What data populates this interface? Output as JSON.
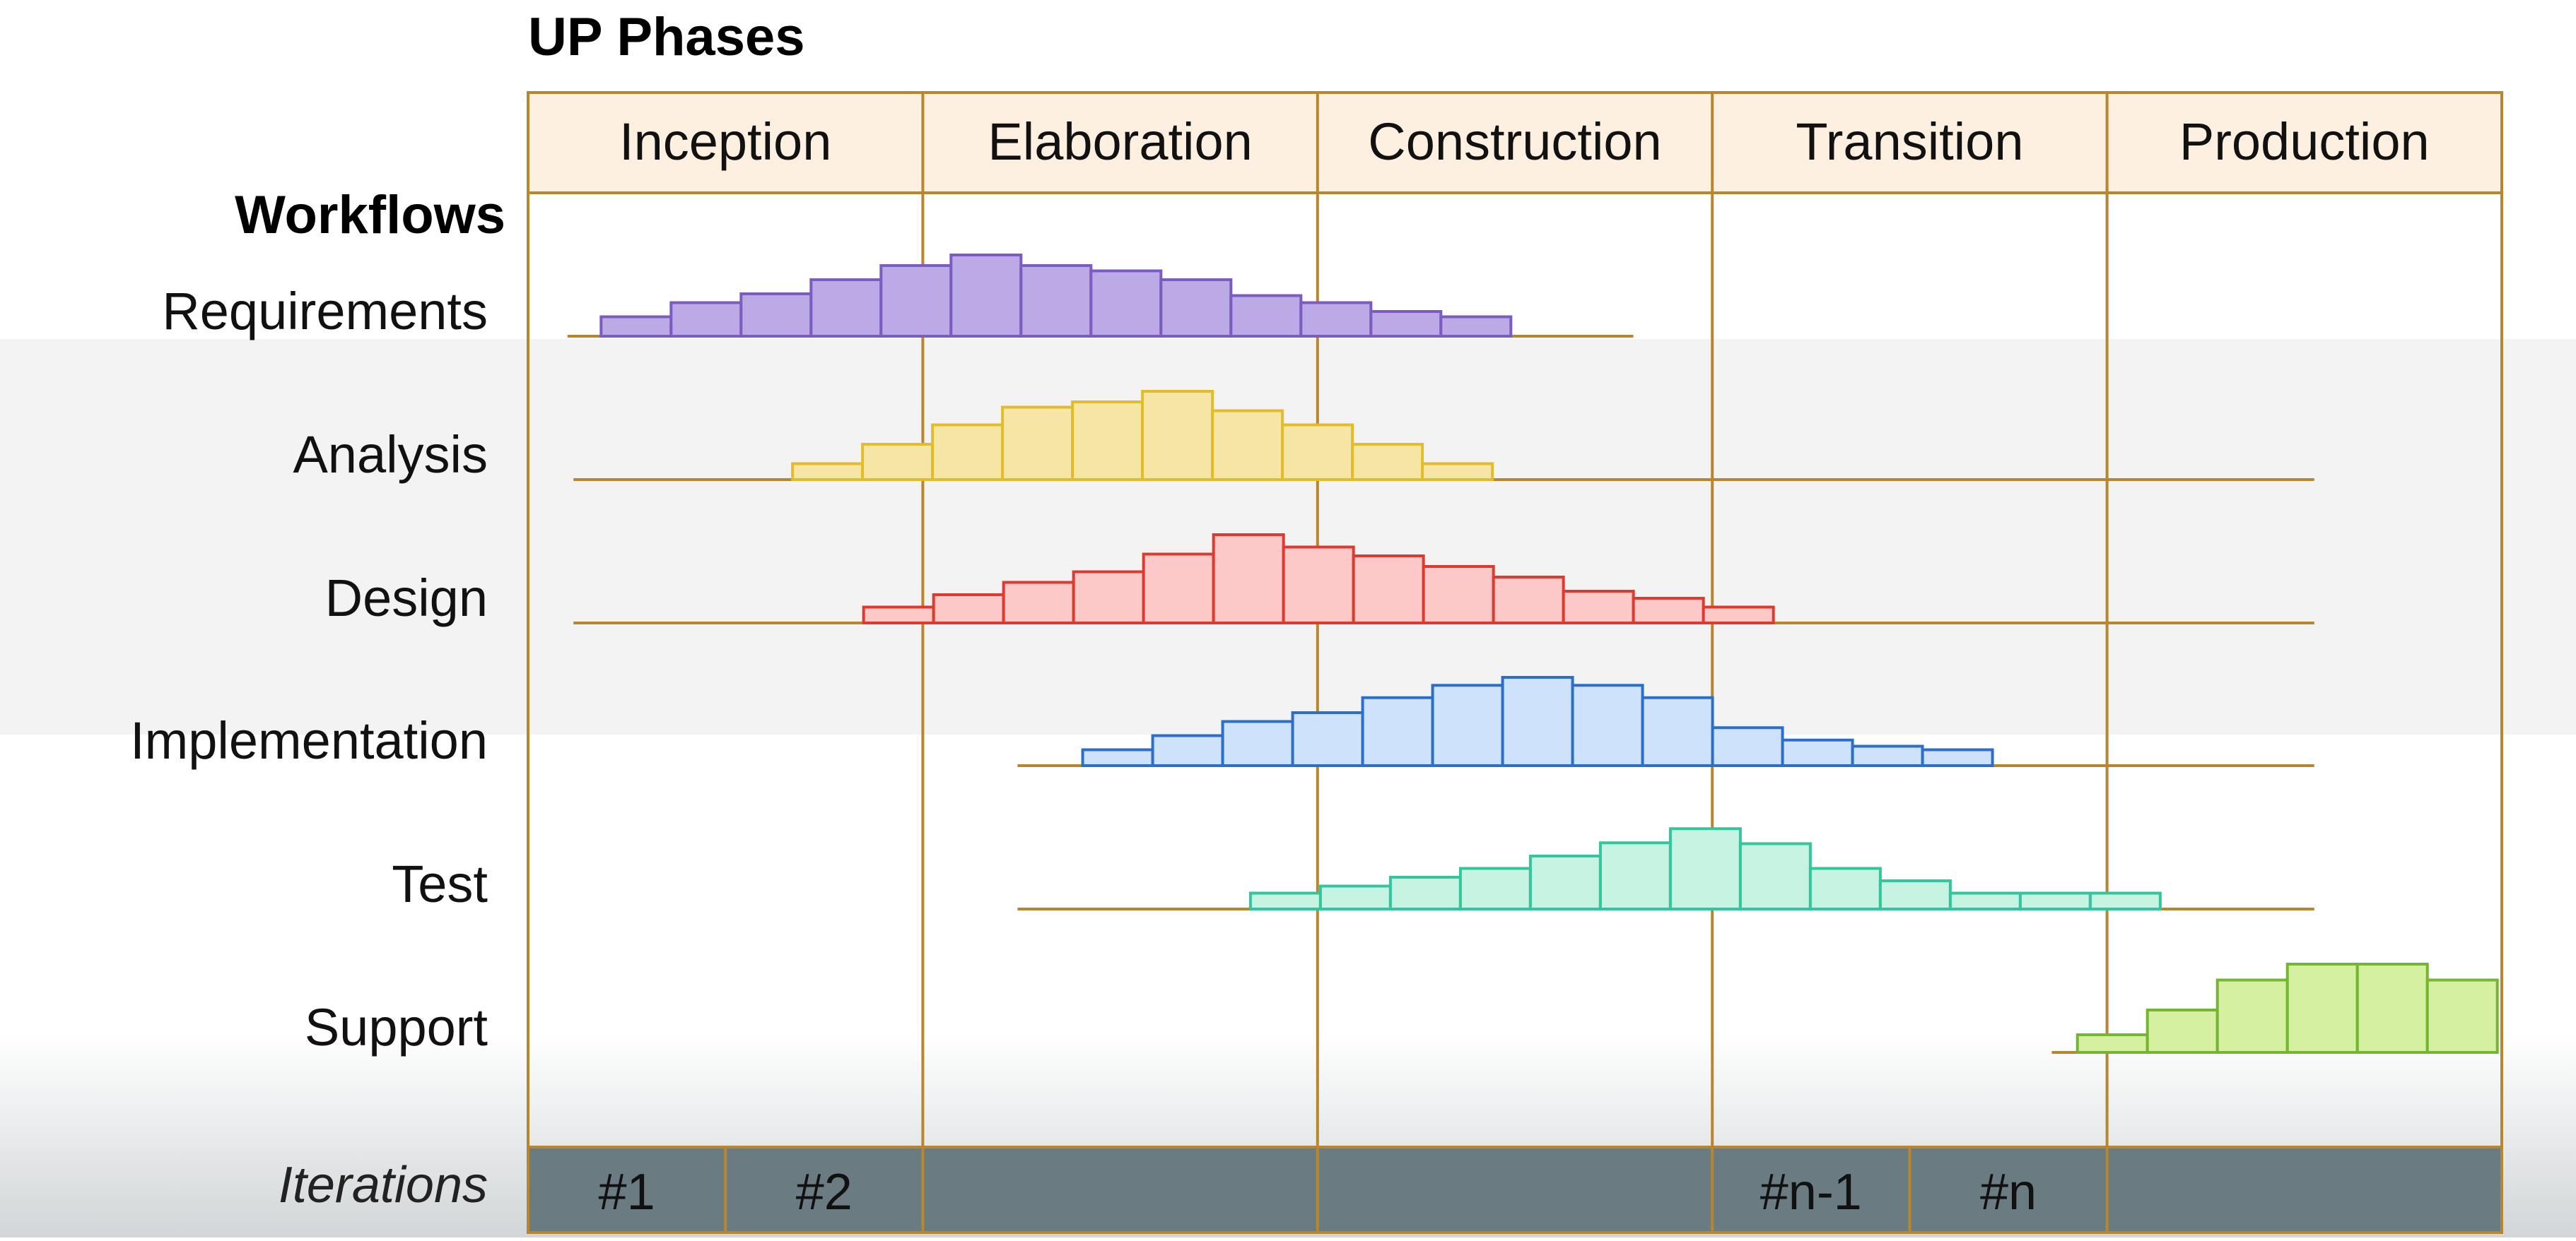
{
  "title": "UP Phases",
  "workflows_heading": "Workflows",
  "iterations_label": "Iterations",
  "phases": [
    "Inception",
    "Elaboration",
    "Construction",
    "Transition",
    "Production"
  ],
  "iteration_cells": [
    "#1",
    "#2",
    "",
    "",
    "#n-1",
    "#n",
    ""
  ],
  "colors": {
    "frame": "#b8862f",
    "phase_header_fill": "#fdf0e0",
    "iteration_bar": "#6b7b82",
    "Requirements": {
      "fill": "#bcaae6",
      "stroke": "#7c5cc0"
    },
    "Analysis": {
      "fill": "#f6e6a6",
      "stroke": "#e2bc2a"
    },
    "Design": {
      "fill": "#fcc8c8",
      "stroke": "#dd3b30"
    },
    "Implementation": {
      "fill": "#cfe2fb",
      "stroke": "#2c6fc8"
    },
    "Test": {
      "fill": "#c6f3e2",
      "stroke": "#33c59c"
    },
    "Support": {
      "fill": "#d6f0a2",
      "stroke": "#74b632"
    }
  },
  "workflows": [
    {
      "name": "Requirements",
      "baseline": [
        0.02,
        0.56
      ],
      "start": 0.037,
      "levels": [
        0.22,
        0.38,
        0.48,
        0.64,
        0.8,
        0.92,
        0.8,
        0.74,
        0.64,
        0.46,
        0.38,
        0.28,
        0.22
      ]
    },
    {
      "name": "Analysis",
      "baseline": [
        0.023,
        0.905
      ],
      "start": 0.134,
      "levels": [
        0.18,
        0.4,
        0.62,
        0.82,
        0.88,
        1.0,
        0.78,
        0.62,
        0.4,
        0.18
      ]
    },
    {
      "name": "Design",
      "baseline": [
        0.023,
        0.905
      ],
      "start": 0.17,
      "levels": [
        0.18,
        0.32,
        0.46,
        0.58,
        0.78,
        1.0,
        0.86,
        0.76,
        0.64,
        0.52,
        0.36,
        0.28,
        0.18
      ]
    },
    {
      "name": "Implementation",
      "baseline": [
        0.248,
        0.905
      ],
      "start": 0.281,
      "levels": [
        0.18,
        0.34,
        0.5,
        0.6,
        0.77,
        0.91,
        1.0,
        0.91,
        0.77,
        0.43,
        0.29,
        0.22,
        0.18
      ]
    },
    {
      "name": "Test",
      "baseline": [
        0.248,
        0.905
      ],
      "start": 0.366,
      "levels": [
        0.18,
        0.26,
        0.36,
        0.46,
        0.6,
        0.75,
        0.91,
        0.74,
        0.46,
        0.32,
        0.18,
        0.18,
        0.18
      ]
    },
    {
      "name": "Support",
      "baseline": [
        0.772,
        0.998
      ],
      "start": 0.785,
      "levels": [
        0.2,
        0.48,
        0.82,
        1.0,
        1.0,
        0.82
      ]
    }
  ]
}
